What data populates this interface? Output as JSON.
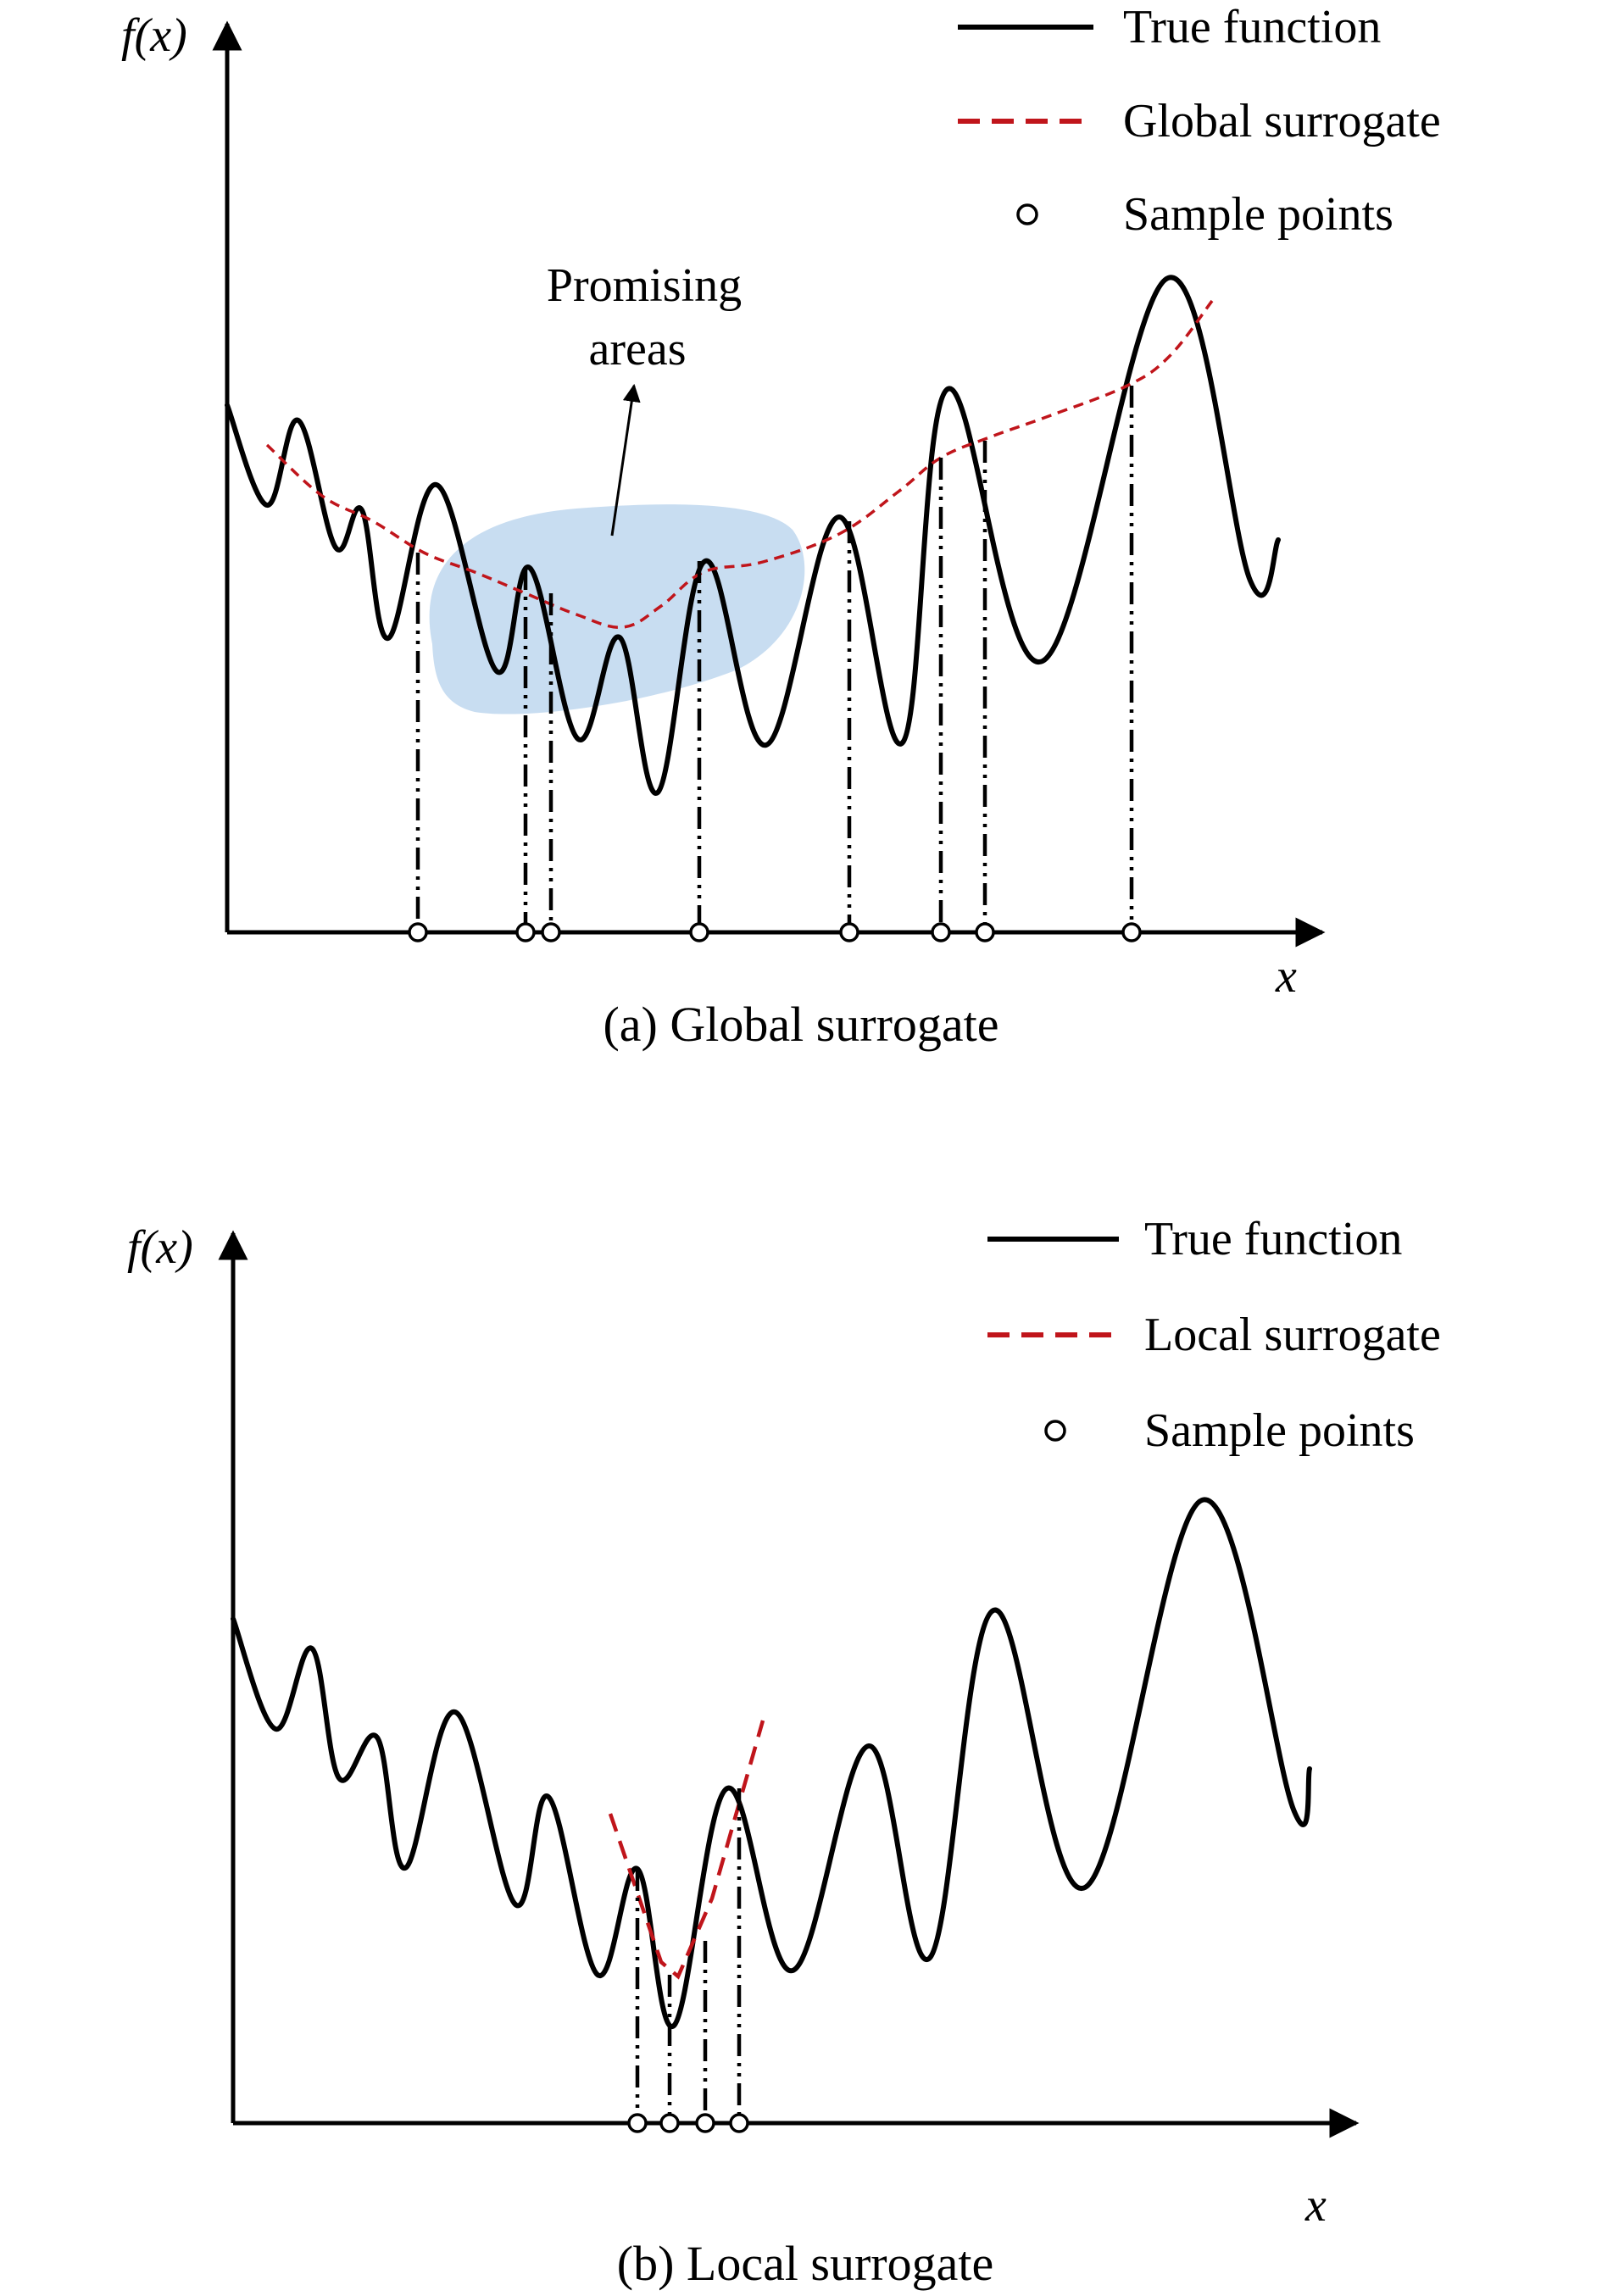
{
  "panels": [
    {
      "id": "a",
      "ylabel": "f(x)",
      "xlabel": "x",
      "caption": "(a) Global surrogate",
      "legend": [
        {
          "label": "True function",
          "symbol": "solid-line"
        },
        {
          "label": "Global surrogate",
          "symbol": "dashed-line"
        },
        {
          "label": "Sample points",
          "symbol": "circle"
        }
      ],
      "annotation": {
        "line1": "Promising",
        "line2": "areas"
      },
      "sample_count": 8
    },
    {
      "id": "b",
      "ylabel": "f(x)",
      "xlabel": "x",
      "caption": "(b) Local surrogate",
      "legend": [
        {
          "label": "True function",
          "symbol": "solid-line"
        },
        {
          "label": "Local surrogate",
          "symbol": "dashed-line"
        },
        {
          "label": "Sample points",
          "symbol": "circle"
        }
      ],
      "sample_count": 4
    }
  ],
  "colors": {
    "curve": "#000000",
    "surrogate": "#c0151b",
    "promising_area": "#b6d1ec"
  }
}
